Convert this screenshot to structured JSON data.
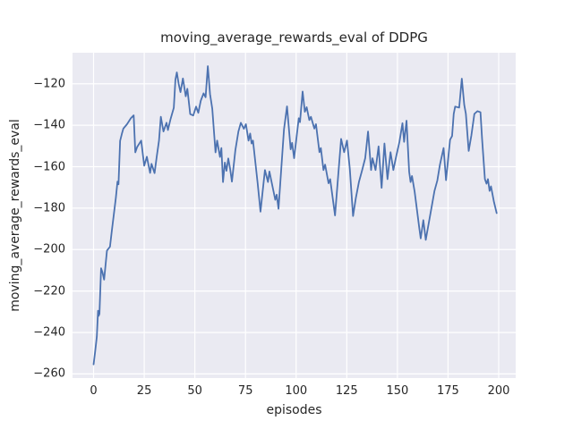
{
  "figure": {
    "background_color": "#FFFFFF"
  },
  "chart_data": {
    "type": "line",
    "title": "moving_average_rewards_eval of DDPG",
    "xlabel": "episodes",
    "ylabel": "moving_average_rewards_eval",
    "legend_position": "none",
    "grid": true,
    "axes_background_color": "#EAEAF2",
    "grid_color": "#FFFFFF",
    "xlim": [
      -10.4,
      208.4
    ],
    "ylim": [
      -262,
      -105
    ],
    "xticks": [
      {
        "value": 0,
        "label": "0"
      },
      {
        "value": 25,
        "label": "25"
      },
      {
        "value": 50,
        "label": "50"
      },
      {
        "value": 75,
        "label": "75"
      },
      {
        "value": 100,
        "label": "100"
      },
      {
        "value": 125,
        "label": "125"
      },
      {
        "value": 150,
        "label": "150"
      },
      {
        "value": 175,
        "label": "175"
      },
      {
        "value": 200,
        "label": "200"
      }
    ],
    "yticks": [
      {
        "value": -260,
        "label": "−260"
      },
      {
        "value": -240,
        "label": "−240"
      },
      {
        "value": -220,
        "label": "−220"
      },
      {
        "value": -200,
        "label": "−200"
      },
      {
        "value": -180,
        "label": "−180"
      },
      {
        "value": -160,
        "label": "−160"
      },
      {
        "value": -140,
        "label": "−140"
      },
      {
        "value": -120,
        "label": "−120"
      }
    ],
    "series": [
      {
        "name": "moving_average_rewards_eval",
        "color": "#4C72B0",
        "line_width": 1.8,
        "points": [
          [
            0,
            -255.4
          ],
          [
            0.8,
            -249
          ],
          [
            1.6,
            -242
          ],
          [
            2.2,
            -229.5
          ],
          [
            2.5,
            -232
          ],
          [
            2.9,
            -231
          ],
          [
            3.7,
            -209
          ],
          [
            4.4,
            -211
          ],
          [
            5.2,
            -214.5
          ],
          [
            6.6,
            -200.5
          ],
          [
            8.1,
            -198.6
          ],
          [
            9,
            -191
          ],
          [
            10,
            -183
          ],
          [
            11,
            -175
          ],
          [
            11.8,
            -167.2
          ],
          [
            12.3,
            -168.5
          ],
          [
            13.1,
            -147.5
          ],
          [
            14,
            -144
          ],
          [
            14.7,
            -141.6
          ],
          [
            16.5,
            -139.5
          ],
          [
            18.4,
            -136.6
          ],
          [
            19.8,
            -135.2
          ],
          [
            20.6,
            -153.1
          ],
          [
            21.5,
            -150.5
          ],
          [
            23.5,
            -147.4
          ],
          [
            25,
            -159.5
          ],
          [
            26.3,
            -155.2
          ],
          [
            27.9,
            -163
          ],
          [
            28.6,
            -158.6
          ],
          [
            30.1,
            -163.1
          ],
          [
            31.2,
            -155
          ],
          [
            32.3,
            -147.4
          ],
          [
            33.2,
            -135.9
          ],
          [
            34.5,
            -143
          ],
          [
            36,
            -138.8
          ],
          [
            36.7,
            -142.3
          ],
          [
            38,
            -137
          ],
          [
            39.6,
            -131.6
          ],
          [
            40.4,
            -118
          ],
          [
            41.1,
            -114.5
          ],
          [
            42,
            -120
          ],
          [
            42.9,
            -124
          ],
          [
            44.1,
            -117.4
          ],
          [
            45.5,
            -126
          ],
          [
            46.3,
            -122.4
          ],
          [
            47.7,
            -134.6
          ],
          [
            49.2,
            -135.3
          ],
          [
            50.6,
            -131
          ],
          [
            51.7,
            -134
          ],
          [
            52.9,
            -128.2
          ],
          [
            54.3,
            -124.6
          ],
          [
            55.3,
            -126.5
          ],
          [
            56.4,
            -111.5
          ],
          [
            57.5,
            -125
          ],
          [
            58.6,
            -132
          ],
          [
            60.2,
            -153.1
          ],
          [
            61,
            -147.4
          ],
          [
            62.4,
            -155.3
          ],
          [
            63.1,
            -151
          ],
          [
            63.9,
            -167.4
          ],
          [
            64.8,
            -158
          ],
          [
            65.6,
            -162
          ],
          [
            66.5,
            -156
          ],
          [
            67.4,
            -161
          ],
          [
            68.3,
            -167.2
          ],
          [
            70,
            -152
          ],
          [
            71.5,
            -143
          ],
          [
            72.7,
            -138.8
          ],
          [
            74.2,
            -141.7
          ],
          [
            75.2,
            -139.5
          ],
          [
            76.5,
            -147.4
          ],
          [
            77.3,
            -144
          ],
          [
            78,
            -148.8
          ],
          [
            78.7,
            -147.4
          ],
          [
            81,
            -168
          ],
          [
            82.4,
            -181.7
          ],
          [
            84.6,
            -161.6
          ],
          [
            86.1,
            -167.4
          ],
          [
            86.8,
            -162.3
          ],
          [
            89.7,
            -176
          ],
          [
            90.4,
            -173.5
          ],
          [
            91.3,
            -180.3
          ],
          [
            94,
            -142
          ],
          [
            95.5,
            -130.9
          ],
          [
            97.3,
            -151.6
          ],
          [
            98,
            -148.5
          ],
          [
            99,
            -155.9
          ],
          [
            101.3,
            -136.6
          ],
          [
            101.9,
            -138.5
          ],
          [
            103.2,
            -123.7
          ],
          [
            104.3,
            -133.5
          ],
          [
            105.2,
            -131.3
          ],
          [
            106.5,
            -137.5
          ],
          [
            107.3,
            -135.9
          ],
          [
            109,
            -141.6
          ],
          [
            109.8,
            -139.5
          ],
          [
            111.5,
            -153
          ],
          [
            112.2,
            -151
          ],
          [
            113.5,
            -161.6
          ],
          [
            114.3,
            -159
          ],
          [
            116,
            -168
          ],
          [
            116.8,
            -166
          ],
          [
            119.2,
            -183.5
          ],
          [
            122.2,
            -146.6
          ],
          [
            123.7,
            -153
          ],
          [
            125.1,
            -147.4
          ],
          [
            126.5,
            -161
          ],
          [
            128.1,
            -183.8
          ],
          [
            129.5,
            -175
          ],
          [
            131,
            -167.4
          ],
          [
            132.5,
            -162
          ],
          [
            134.1,
            -155.9
          ],
          [
            135.5,
            -143
          ],
          [
            137,
            -161.6
          ],
          [
            137.7,
            -155.9
          ],
          [
            139.2,
            -161.6
          ],
          [
            140.7,
            -150.2
          ],
          [
            142.2,
            -170.2
          ],
          [
            143.6,
            -148.8
          ],
          [
            145.1,
            -166
          ],
          [
            146.6,
            -153
          ],
          [
            148,
            -161.6
          ],
          [
            149.5,
            -154.5
          ],
          [
            151,
            -148
          ],
          [
            152.5,
            -139
          ],
          [
            153.3,
            -148
          ],
          [
            154.5,
            -137.8
          ],
          [
            155.8,
            -162.4
          ],
          [
            156.5,
            -167.4
          ],
          [
            157.2,
            -164.5
          ],
          [
            158.5,
            -172
          ],
          [
            160.8,
            -189.6
          ],
          [
            161.5,
            -194.6
          ],
          [
            162.8,
            -185.8
          ],
          [
            164,
            -195.3
          ],
          [
            166.1,
            -183.8
          ],
          [
            168.3,
            -171.7
          ],
          [
            169.7,
            -166.7
          ],
          [
            171,
            -159
          ],
          [
            172.8,
            -151
          ],
          [
            174,
            -166.5
          ],
          [
            176,
            -147
          ],
          [
            177,
            -145.2
          ],
          [
            177.8,
            -134.5
          ],
          [
            178.5,
            -131
          ],
          [
            180.5,
            -131.5
          ],
          [
            181.8,
            -117.5
          ],
          [
            183,
            -130.2
          ],
          [
            183.8,
            -134.5
          ],
          [
            185.2,
            -152.4
          ],
          [
            186.5,
            -145
          ],
          [
            188,
            -134.5
          ],
          [
            189.5,
            -133.2
          ],
          [
            191,
            -133.7
          ],
          [
            191.8,
            -146.6
          ],
          [
            193.2,
            -166
          ],
          [
            194,
            -168.2
          ],
          [
            194.7,
            -166
          ],
          [
            195.5,
            -171.7
          ],
          [
            196.2,
            -169.5
          ],
          [
            197.6,
            -176.7
          ],
          [
            199,
            -182.4
          ]
        ]
      }
    ]
  }
}
